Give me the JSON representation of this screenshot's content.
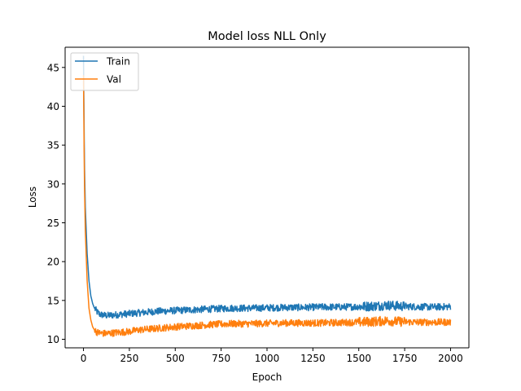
{
  "chart_data": {
    "type": "line",
    "title": "Model loss NLL Only",
    "xlabel": "Epoch",
    "ylabel": "Loss",
    "xlim": [
      -100,
      2100
    ],
    "ylim": [
      8.9,
      47.6
    ],
    "xticks": [
      0,
      250,
      500,
      750,
      1000,
      1250,
      1500,
      1750,
      2000
    ],
    "yticks": [
      10,
      15,
      20,
      25,
      30,
      35,
      40,
      45
    ],
    "grid": false,
    "legend_position": "top-left",
    "series": [
      {
        "name": "Train",
        "color": "#1f77b4",
        "x": [
          0,
          5,
          10,
          20,
          30,
          40,
          50,
          60,
          75,
          90,
          110,
          130,
          150,
          200,
          250,
          300,
          400,
          500,
          600,
          700,
          800,
          900,
          1000,
          1100,
          1200,
          1300,
          1400,
          1500,
          1600,
          1650,
          1700,
          1800,
          1900,
          2000
        ],
        "y": [
          46.5,
          33.0,
          27.0,
          21.0,
          17.5,
          15.6,
          14.6,
          14.0,
          13.5,
          13.2,
          13.1,
          13.05,
          13.1,
          13.2,
          13.3,
          13.4,
          13.6,
          13.7,
          13.8,
          13.9,
          14.0,
          14.0,
          14.05,
          14.1,
          14.1,
          14.15,
          14.15,
          14.2,
          14.3,
          14.4,
          14.3,
          14.2,
          14.15,
          14.2
        ],
        "noise": 0.45
      },
      {
        "name": "Val",
        "color": "#ff7f0e",
        "x": [
          0,
          5,
          10,
          20,
          30,
          40,
          50,
          60,
          75,
          90,
          110,
          130,
          150,
          200,
          250,
          300,
          400,
          500,
          600,
          700,
          800,
          900,
          1000,
          1100,
          1200,
          1300,
          1400,
          1500,
          1600,
          1650,
          1700,
          1800,
          1900,
          2000
        ],
        "y": [
          44.0,
          30.5,
          24.0,
          17.5,
          14.0,
          12.5,
          11.6,
          11.2,
          10.9,
          10.8,
          10.75,
          10.75,
          10.8,
          10.9,
          11.0,
          11.2,
          11.4,
          11.6,
          11.75,
          11.9,
          12.0,
          12.0,
          12.05,
          12.1,
          12.1,
          12.1,
          12.15,
          12.2,
          12.3,
          12.4,
          12.3,
          12.2,
          12.2,
          12.2
        ],
        "noise": 0.45
      }
    ]
  }
}
